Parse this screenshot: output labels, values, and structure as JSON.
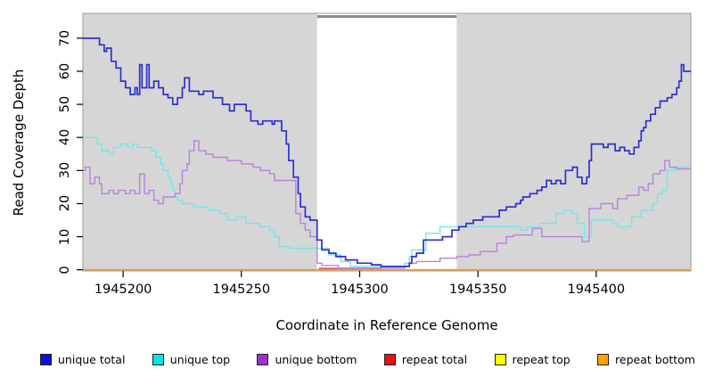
{
  "chart_data": {
    "type": "line",
    "subtype": "step",
    "title": "",
    "xlabel": "Coordinate in Reference Genome",
    "ylabel": "Read Coverage Depth",
    "xlim": [
      1945183,
      1945440
    ],
    "ylim": [
      0,
      70
    ],
    "x_ticks": [
      1945200,
      1945250,
      1945300,
      1945350,
      1945400
    ],
    "y_ticks": [
      0,
      10,
      20,
      30,
      40,
      50,
      60,
      70
    ],
    "grid": false,
    "legend_position": "bottom",
    "shading": {
      "shaded_color": "#d6d6d6",
      "panel_border_color": "#9b9b9b",
      "white_band_x": [
        1945282,
        1945341
      ],
      "top_bar_x": [
        1945282,
        1945341
      ],
      "top_bar_color": "#8a8a8a"
    },
    "series": [
      {
        "name": "unique total",
        "color": "#2f2fd2",
        "legend_color": "#0f0fd6",
        "width": 1.7,
        "points": [
          [
            1945183,
            70
          ],
          [
            1945190,
            68
          ],
          [
            1945192,
            66
          ],
          [
            1945193,
            67
          ],
          [
            1945195,
            63
          ],
          [
            1945197,
            61
          ],
          [
            1945199,
            57
          ],
          [
            1945201,
            55
          ],
          [
            1945203,
            53
          ],
          [
            1945205,
            55
          ],
          [
            1945206,
            53
          ],
          [
            1945207,
            62
          ],
          [
            1945208,
            55
          ],
          [
            1945210,
            62
          ],
          [
            1945211,
            55
          ],
          [
            1945213,
            57
          ],
          [
            1945215,
            55
          ],
          [
            1945217,
            53
          ],
          [
            1945219,
            52
          ],
          [
            1945221,
            50
          ],
          [
            1945223,
            52
          ],
          [
            1945225,
            55
          ],
          [
            1945226,
            58
          ],
          [
            1945228,
            54
          ],
          [
            1945232,
            53
          ],
          [
            1945234,
            54
          ],
          [
            1945238,
            52
          ],
          [
            1945242,
            50
          ],
          [
            1945245,
            48
          ],
          [
            1945247,
            50
          ],
          [
            1945252,
            48
          ],
          [
            1945254,
            45
          ],
          [
            1945257,
            44
          ],
          [
            1945259,
            45
          ],
          [
            1945263,
            44
          ],
          [
            1945264,
            45
          ],
          [
            1945267,
            42
          ],
          [
            1945269,
            38
          ],
          [
            1945270,
            33
          ],
          [
            1945272,
            28
          ],
          [
            1945274,
            23
          ],
          [
            1945275,
            19
          ],
          [
            1945277,
            16
          ],
          [
            1945279,
            15
          ],
          [
            1945282,
            9
          ],
          [
            1945284,
            6
          ],
          [
            1945287,
            5
          ],
          [
            1945290,
            4
          ],
          [
            1945294,
            3
          ],
          [
            1945299,
            2
          ],
          [
            1945305,
            1.5
          ],
          [
            1945309,
            1
          ],
          [
            1945321,
            2
          ],
          [
            1945322,
            4
          ],
          [
            1945324,
            5
          ],
          [
            1945327,
            9
          ],
          [
            1945335,
            10
          ],
          [
            1945339,
            12
          ],
          [
            1945342,
            13
          ],
          [
            1945345,
            14
          ],
          [
            1945348,
            15
          ],
          [
            1945352,
            16
          ],
          [
            1945359,
            18
          ],
          [
            1945362,
            19
          ],
          [
            1945366,
            20
          ],
          [
            1945368,
            21
          ],
          [
            1945369,
            22
          ],
          [
            1945372,
            23
          ],
          [
            1945375,
            24
          ],
          [
            1945377,
            25
          ],
          [
            1945379,
            27
          ],
          [
            1945381,
            26
          ],
          [
            1945383,
            27
          ],
          [
            1945385,
            26
          ],
          [
            1945387,
            30
          ],
          [
            1945390,
            31
          ],
          [
            1945392,
            28
          ],
          [
            1945394,
            26
          ],
          [
            1945396,
            28
          ],
          [
            1945397,
            33
          ],
          [
            1945398,
            38
          ],
          [
            1945403,
            37
          ],
          [
            1945405,
            38
          ],
          [
            1945408,
            36
          ],
          [
            1945410,
            37
          ],
          [
            1945412,
            36
          ],
          [
            1945414,
            35
          ],
          [
            1945416,
            37
          ],
          [
            1945418,
            39
          ],
          [
            1945419,
            42
          ],
          [
            1945420,
            43
          ],
          [
            1945421,
            45
          ],
          [
            1945423,
            47
          ],
          [
            1945425,
            49
          ],
          [
            1945427,
            51
          ],
          [
            1945430,
            52
          ],
          [
            1945432,
            53
          ],
          [
            1945434,
            55
          ],
          [
            1945435,
            57
          ],
          [
            1945436,
            62
          ],
          [
            1945437,
            60
          ]
        ]
      },
      {
        "name": "unique top",
        "color": "#74e7e7",
        "legend_color": "#00e5e5",
        "width": 1.4,
        "points": [
          [
            1945183,
            40
          ],
          [
            1945189,
            38
          ],
          [
            1945191,
            36
          ],
          [
            1945194,
            35
          ],
          [
            1945196,
            37
          ],
          [
            1945199,
            38
          ],
          [
            1945202,
            37
          ],
          [
            1945204,
            38
          ],
          [
            1945206,
            37
          ],
          [
            1945212,
            36
          ],
          [
            1945214,
            34
          ],
          [
            1945216,
            32
          ],
          [
            1945217,
            30
          ],
          [
            1945219,
            28
          ],
          [
            1945220,
            26
          ],
          [
            1945221,
            24
          ],
          [
            1945222,
            22
          ],
          [
            1945223,
            21
          ],
          [
            1945225,
            20
          ],
          [
            1945230,
            19
          ],
          [
            1945236,
            18
          ],
          [
            1945241,
            17
          ],
          [
            1945244,
            15
          ],
          [
            1945248,
            16
          ],
          [
            1945252,
            14
          ],
          [
            1945258,
            13
          ],
          [
            1945262,
            12
          ],
          [
            1945264,
            10
          ],
          [
            1945266,
            7
          ],
          [
            1945270,
            6.5
          ],
          [
            1945287,
            4.5
          ],
          [
            1945292,
            2.5
          ],
          [
            1945296,
            1
          ],
          [
            1945319,
            2
          ],
          [
            1945321,
            4
          ],
          [
            1945322,
            6
          ],
          [
            1945328,
            11
          ],
          [
            1945334,
            13
          ],
          [
            1945368,
            12
          ],
          [
            1945371,
            13
          ],
          [
            1945376,
            14
          ],
          [
            1945383,
            17
          ],
          [
            1945386,
            18
          ],
          [
            1945390,
            17
          ],
          [
            1945392,
            14
          ],
          [
            1945395,
            10
          ],
          [
            1945398,
            15
          ],
          [
            1945407,
            14
          ],
          [
            1945409,
            13
          ],
          [
            1945415,
            16
          ],
          [
            1945419,
            18
          ],
          [
            1945424,
            20
          ],
          [
            1945426,
            23
          ],
          [
            1945428,
            24
          ],
          [
            1945430,
            30
          ],
          [
            1945433,
            31
          ]
        ]
      },
      {
        "name": "unique bottom",
        "color": "#b883da",
        "legend_color": "#9933cc",
        "width": 1.4,
        "points": [
          [
            1945183,
            30
          ],
          [
            1945184,
            31
          ],
          [
            1945186,
            26
          ],
          [
            1945188,
            28
          ],
          [
            1945190,
            26
          ],
          [
            1945191,
            23
          ],
          [
            1945194,
            24
          ],
          [
            1945196,
            23
          ],
          [
            1945198,
            24
          ],
          [
            1945201,
            23
          ],
          [
            1945203,
            24
          ],
          [
            1945205,
            23
          ],
          [
            1945207,
            29
          ],
          [
            1945209,
            23
          ],
          [
            1945211,
            24
          ],
          [
            1945213,
            21
          ],
          [
            1945215,
            20
          ],
          [
            1945217,
            22
          ],
          [
            1945222,
            23
          ],
          [
            1945224,
            26
          ],
          [
            1945225,
            30
          ],
          [
            1945227,
            32
          ],
          [
            1945228,
            36
          ],
          [
            1945230,
            39
          ],
          [
            1945232,
            36
          ],
          [
            1945235,
            35
          ],
          [
            1945238,
            34
          ],
          [
            1945244,
            33
          ],
          [
            1945250,
            32
          ],
          [
            1945255,
            31
          ],
          [
            1945258,
            30
          ],
          [
            1945262,
            29
          ],
          [
            1945264,
            27
          ],
          [
            1945273,
            17
          ],
          [
            1945275,
            14
          ],
          [
            1945277,
            12
          ],
          [
            1945279,
            10
          ],
          [
            1945282,
            2
          ],
          [
            1945284,
            1.3
          ],
          [
            1945291,
            0.5
          ],
          [
            1945319,
            1
          ],
          [
            1945321,
            2
          ],
          [
            1945324,
            2.5
          ],
          [
            1945334,
            3.5
          ],
          [
            1945341,
            4
          ],
          [
            1945346,
            4.5
          ],
          [
            1945351,
            5.5
          ],
          [
            1945358,
            8
          ],
          [
            1945362,
            10
          ],
          [
            1945365,
            10.5
          ],
          [
            1945373,
            12.5
          ],
          [
            1945377,
            10
          ],
          [
            1945394,
            8.5
          ],
          [
            1945397,
            18.5
          ],
          [
            1945402,
            20
          ],
          [
            1945407,
            18.5
          ],
          [
            1945409,
            21.5
          ],
          [
            1945413,
            22.5
          ],
          [
            1945418,
            25
          ],
          [
            1945420,
            24
          ],
          [
            1945422,
            26
          ],
          [
            1945424,
            29
          ],
          [
            1945427,
            30
          ],
          [
            1945429,
            33
          ],
          [
            1945431,
            31
          ],
          [
            1945434,
            30.5
          ]
        ]
      },
      {
        "name": "repeat total",
        "color": "#cc3355",
        "legend_color": "#ee1111",
        "width": 1.3,
        "points": [
          [
            1945183,
            0
          ],
          [
            1945283,
            0.4
          ],
          [
            1945309,
            0
          ]
        ]
      },
      {
        "name": "repeat top",
        "color": "#f2ef3a",
        "legend_color": "#fdfd00",
        "width": 1.2,
        "points": [
          [
            1945183,
            0
          ]
        ]
      },
      {
        "name": "repeat bottom",
        "color": "#ff9d1e",
        "legend_color": "#ffa300",
        "width": 1.7,
        "points": [
          [
            1945183,
            0
          ]
        ]
      }
    ],
    "draw_order": [
      "repeat top",
      "repeat total",
      "repeat bottom",
      "unique top",
      "unique bottom",
      "unique total"
    ]
  }
}
